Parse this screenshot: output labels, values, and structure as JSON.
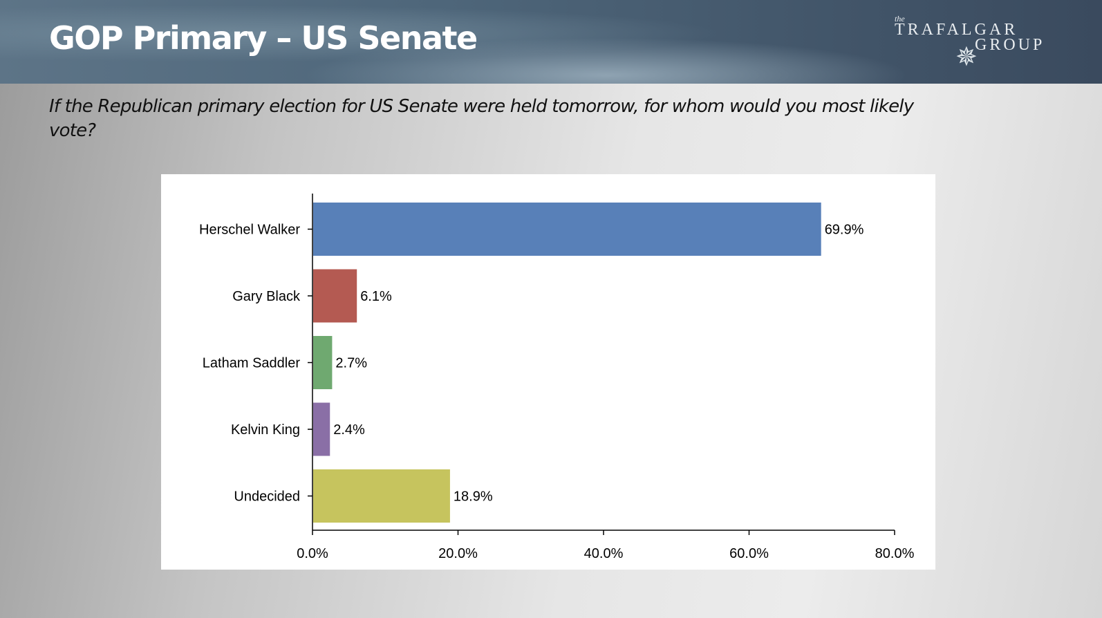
{
  "header": {
    "title": "GOP Primary – US Senate"
  },
  "logo": {
    "the": "the",
    "line1": "TRAFALGAR",
    "line2": "GROUP"
  },
  "question": "If the Republican primary election for US Senate were held tomorrow, for whom would you most likely vote?",
  "chart_data": {
    "type": "bar",
    "orientation": "horizontal",
    "categories": [
      "Herschel Walker",
      "Gary Black",
      "Latham Saddler",
      "Kelvin King",
      "Undecided"
    ],
    "values": [
      69.9,
      6.1,
      2.7,
      2.4,
      18.9
    ],
    "data_labels": [
      "69.9%",
      "6.1%",
      "2.7%",
      "2.4%",
      "18.9%"
    ],
    "colors": [
      "#5880b8",
      "#b45a52",
      "#6fa970",
      "#8a6fa6",
      "#c6c45e"
    ],
    "xlim": [
      0,
      80
    ],
    "xticks": [
      0,
      20,
      40,
      60,
      80
    ],
    "xtick_labels": [
      "0.0%",
      "20.0%",
      "40.0%",
      "60.0%",
      "80.0%"
    ],
    "grid": false,
    "title": "",
    "xlabel": "",
    "ylabel": ""
  }
}
